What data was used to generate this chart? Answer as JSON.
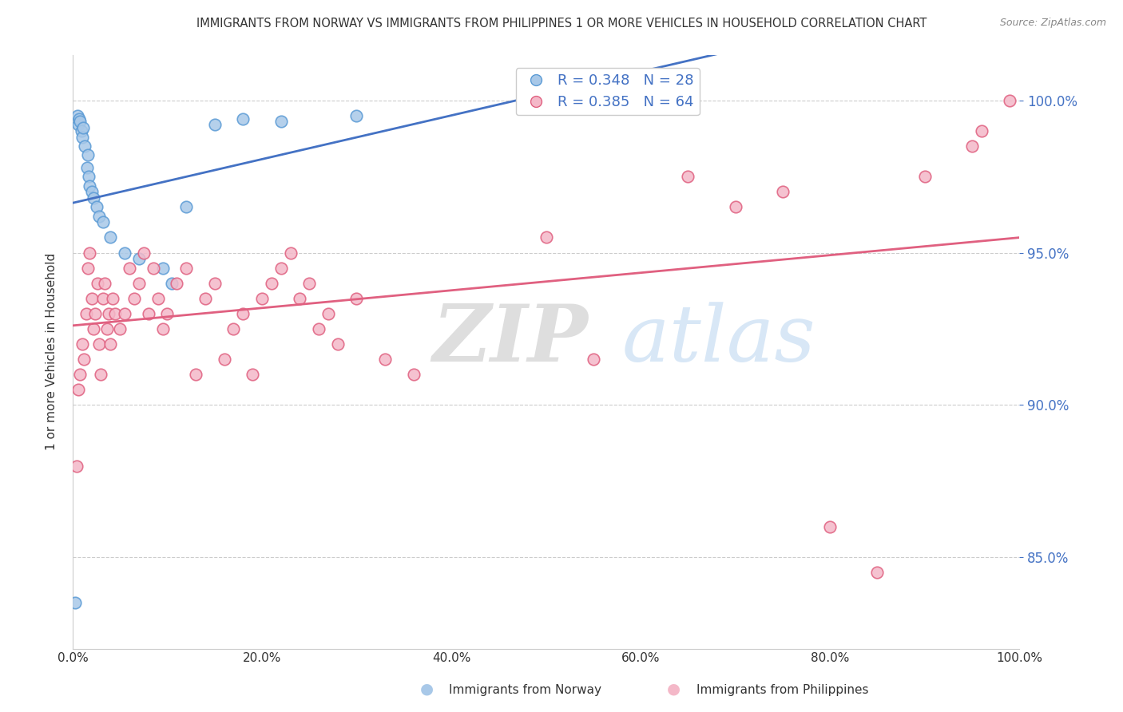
{
  "title": "IMMIGRANTS FROM NORWAY VS IMMIGRANTS FROM PHILIPPINES 1 OR MORE VEHICLES IN HOUSEHOLD CORRELATION CHART",
  "source": "Source: ZipAtlas.com",
  "ylabel": "1 or more Vehicles in Household",
  "xmin": 0.0,
  "xmax": 100.0,
  "ymin": 82.0,
  "ymax": 101.5,
  "yticks_right": [
    85.0,
    90.0,
    95.0,
    100.0
  ],
  "norway_color": "#a8c8e8",
  "norway_edge_color": "#5b9bd5",
  "philippines_color": "#f4b8c8",
  "philippines_edge_color": "#e06080",
  "norway_line_color": "#4472c4",
  "philippines_line_color": "#e06080",
  "legend_norway_R": "R = 0.348",
  "legend_norway_N": "N = 28",
  "legend_philippines_R": "R = 0.385",
  "legend_philippines_N": "N = 64",
  "norway_x": [
    0.3,
    0.5,
    0.6,
    0.7,
    0.8,
    0.9,
    1.0,
    1.1,
    1.3,
    1.5,
    1.6,
    1.7,
    1.8,
    2.0,
    2.2,
    2.5,
    2.8,
    3.2,
    4.0,
    5.5,
    7.0,
    9.5,
    10.5,
    12.0,
    15.0,
    18.0,
    22.0,
    30.0
  ],
  "norway_y": [
    83.5,
    99.5,
    99.2,
    99.4,
    99.3,
    99.0,
    98.8,
    99.1,
    98.5,
    97.8,
    98.2,
    97.5,
    97.2,
    97.0,
    96.8,
    96.5,
    96.2,
    96.0,
    95.5,
    95.0,
    94.8,
    94.5,
    94.0,
    96.5,
    99.2,
    99.4,
    99.3,
    99.5
  ],
  "philippines_x": [
    0.4,
    0.6,
    0.8,
    1.0,
    1.2,
    1.4,
    1.6,
    1.8,
    2.0,
    2.2,
    2.4,
    2.6,
    2.8,
    3.0,
    3.2,
    3.4,
    3.6,
    3.8,
    4.0,
    4.2,
    4.5,
    5.0,
    5.5,
    6.0,
    6.5,
    7.0,
    7.5,
    8.0,
    8.5,
    9.0,
    9.5,
    10.0,
    11.0,
    12.0,
    13.0,
    14.0,
    15.0,
    16.0,
    17.0,
    18.0,
    19.0,
    20.0,
    21.0,
    22.0,
    23.0,
    24.0,
    25.0,
    26.0,
    27.0,
    28.0,
    30.0,
    33.0,
    36.0,
    50.0,
    55.0,
    65.0,
    70.0,
    75.0,
    80.0,
    85.0,
    90.0,
    95.0,
    96.0,
    99.0
  ],
  "philippines_y": [
    88.0,
    90.5,
    91.0,
    92.0,
    91.5,
    93.0,
    94.5,
    95.0,
    93.5,
    92.5,
    93.0,
    94.0,
    92.0,
    91.0,
    93.5,
    94.0,
    92.5,
    93.0,
    92.0,
    93.5,
    93.0,
    92.5,
    93.0,
    94.5,
    93.5,
    94.0,
    95.0,
    93.0,
    94.5,
    93.5,
    92.5,
    93.0,
    94.0,
    94.5,
    91.0,
    93.5,
    94.0,
    91.5,
    92.5,
    93.0,
    91.0,
    93.5,
    94.0,
    94.5,
    95.0,
    93.5,
    94.0,
    92.5,
    93.0,
    92.0,
    93.5,
    91.5,
    91.0,
    95.5,
    91.5,
    97.5,
    96.5,
    97.0,
    86.0,
    84.5,
    97.5,
    98.5,
    99.0,
    100.0
  ],
  "watermark_zip": "ZIP",
  "watermark_atlas": "atlas",
  "grid_color": "#cccccc",
  "background_color": "#ffffff",
  "title_color": "#333333",
  "axis_label_color": "#333333",
  "right_axis_color": "#4472c4"
}
